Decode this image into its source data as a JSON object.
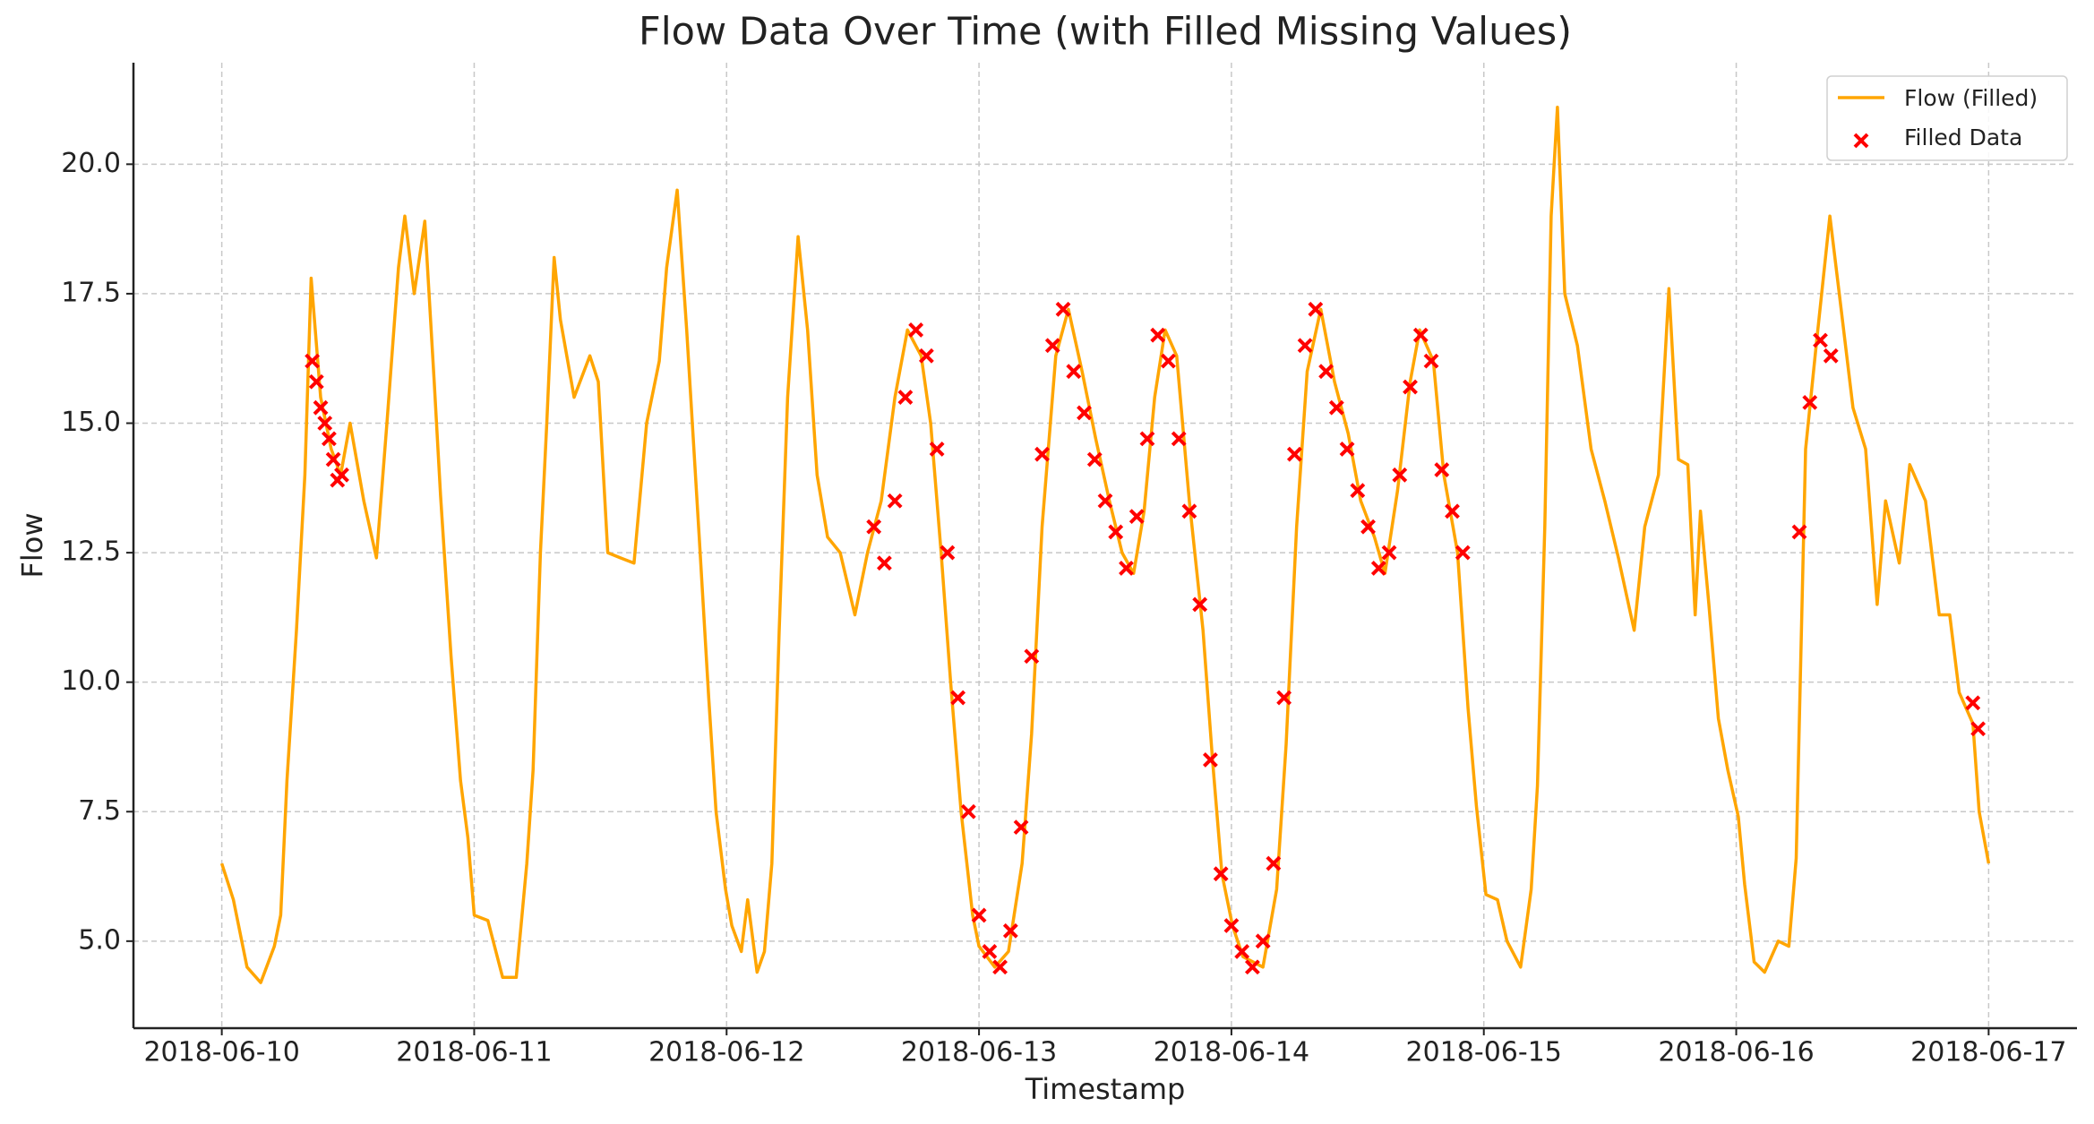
{
  "chart_data": {
    "type": "line",
    "title": "Flow Data Over Time (with Filled Missing Values)",
    "x_label": "Timestamp",
    "y_label": "Flow",
    "xlim": [
      -8.4,
      176.4
    ],
    "ylim": [
      3.32,
      21.96
    ],
    "xticks": [
      {
        "value": 0,
        "label": "2018-06-10"
      },
      {
        "value": 24,
        "label": "2018-06-11"
      },
      {
        "value": 48,
        "label": "2018-06-12"
      },
      {
        "value": 72,
        "label": "2018-06-13"
      },
      {
        "value": 96,
        "label": "2018-06-14"
      },
      {
        "value": 120,
        "label": "2018-06-15"
      },
      {
        "value": 144,
        "label": "2018-06-16"
      },
      {
        "value": 168,
        "label": "2018-06-17"
      }
    ],
    "yticks": [
      {
        "value": 5,
        "label": "5.0"
      },
      {
        "value": 7.5,
        "label": "7.5"
      },
      {
        "value": 10,
        "label": "10.0"
      },
      {
        "value": 12.5,
        "label": "12.5"
      },
      {
        "value": 15,
        "label": "15.0"
      },
      {
        "value": 17.5,
        "label": "17.5"
      },
      {
        "value": 20,
        "label": "20.0"
      }
    ],
    "grid": true,
    "legend": "upper right",
    "series": [
      {
        "name": "Flow (Filled)",
        "type": "line",
        "color": "#ffa500",
        "x": [
          0,
          1.1,
          2.4,
          3.7,
          5,
          5.6,
          6.2,
          7.1,
          7.9,
          8.5,
          9.4,
          10.4,
          11.3,
          12.2,
          13.5,
          14.7,
          15.7,
          16.8,
          17.4,
          18.3,
          19.3,
          20.2,
          20.8,
          21.8,
          22.7,
          23.4,
          24,
          25.3,
          26.7,
          28,
          29,
          29.6,
          30.3,
          30.9,
          31.6,
          32.2,
          33.5,
          35,
          35.8,
          36.7,
          37.9,
          39.2,
          40.4,
          41.6,
          42.3,
          43.3,
          44.2,
          44.8,
          45.4,
          46.3,
          47,
          47.9,
          48.5,
          49.4,
          50,
          50.9,
          51.6,
          52.3,
          53,
          53.8,
          54.8,
          55.7,
          56.6,
          57.6,
          58.8,
          60.2,
          61.4,
          62.7,
          64,
          65.2,
          66.5,
          67.4,
          68.4,
          69.3,
          70.3,
          71.4,
          72,
          73.5,
          74.8,
          76.1,
          77,
          78,
          79.3,
          80.5,
          81.8,
          83.1,
          84.4,
          85.6,
          86.7,
          87.7,
          88.7,
          89.7,
          90.8,
          92,
          93.3,
          94.2,
          95.1,
          96.1,
          97.1,
          99,
          100.3,
          101.2,
          102.2,
          103.2,
          104.5,
          105.8,
          107.1,
          108.3,
          109.6,
          110.6,
          111.8,
          113,
          113.9,
          115.2,
          116.2,
          117.5,
          118.5,
          119.3,
          120.2,
          121.3,
          122.2,
          123.5,
          124.5,
          125.1,
          125.8,
          126.4,
          127,
          127.7,
          128.9,
          130.2,
          131.5,
          132.8,
          134.3,
          135.3,
          136.6,
          137.6,
          138.5,
          139.4,
          140.1,
          140.6,
          141.4,
          142.3,
          143.2,
          144.2,
          144.8,
          145.7,
          146.7,
          148,
          149,
          149.7,
          150.6,
          151.6,
          152.9,
          153.8,
          155.1,
          156.3,
          157.4,
          158.2,
          159.5,
          160.5,
          162,
          163.3,
          164.3,
          165.2,
          166.5,
          167.1,
          168
        ],
        "values": [
          6.5,
          5.8,
          4.5,
          4.2,
          4.9,
          5.5,
          8.1,
          11,
          14,
          17.8,
          15.5,
          14.5,
          14,
          15,
          13.5,
          12.4,
          15,
          18,
          19,
          17.5,
          18.9,
          15.8,
          13.6,
          10.5,
          8.1,
          7,
          5.5,
          5.4,
          4.3,
          4.3,
          6.5,
          8.3,
          12.5,
          15,
          18.2,
          17,
          15.5,
          16.3,
          15.8,
          12.5,
          12.4,
          12.3,
          15,
          16.2,
          18,
          19.5,
          16.8,
          14.8,
          12.8,
          9.7,
          7.5,
          6,
          5.3,
          4.8,
          5.8,
          4.4,
          4.8,
          6.5,
          11,
          15.5,
          18.6,
          16.8,
          14,
          12.8,
          12.5,
          11.3,
          12.5,
          13.5,
          15.5,
          16.8,
          16.3,
          15,
          12.5,
          10,
          7.5,
          5.5,
          4.9,
          4.5,
          4.8,
          6.5,
          9,
          13,
          16.3,
          17.2,
          16,
          14.7,
          13.5,
          12.5,
          12.1,
          13.3,
          15.5,
          16.8,
          16.3,
          13.5,
          11,
          8.5,
          6.3,
          5.3,
          4.7,
          4.5,
          6,
          8.8,
          13,
          16,
          17.2,
          15.8,
          14.8,
          13.5,
          12.8,
          12.1,
          13.7,
          15.8,
          16.8,
          16.2,
          14,
          12.5,
          9.5,
          7.6,
          5.9,
          5.8,
          5,
          4.5,
          6,
          8,
          13,
          19,
          21.1,
          17.5,
          16.5,
          14.5,
          13.5,
          12.4,
          11,
          13,
          14,
          17.6,
          14.3,
          14.2,
          11.3,
          13.3,
          11.5,
          9.3,
          8.3,
          7.4,
          6.1,
          4.6,
          4.4,
          5,
          4.9,
          6.6,
          14.5,
          16.5,
          19,
          17.5,
          15.3,
          14.5,
          11.5,
          13.5,
          12.3,
          14.2,
          13.5,
          11.3,
          11.3,
          9.8,
          9.2,
          7.5,
          6.5
        ]
      },
      {
        "name": "Filled Data",
        "type": "scatter",
        "color": "#ff0000",
        "x": [
          8.6,
          9,
          9.4,
          9.8,
          10.2,
          10.6,
          11,
          11.4,
          62,
          63,
          64,
          65,
          66,
          67,
          68,
          69,
          70,
          71,
          72,
          73,
          74,
          75,
          76,
          77,
          78,
          79,
          80,
          81,
          82,
          83,
          84,
          85,
          86,
          87,
          88,
          89,
          90,
          91,
          92,
          93,
          94,
          95,
          96,
          97,
          98,
          99,
          100,
          101,
          102,
          103,
          104,
          105,
          106,
          107,
          108,
          109,
          110,
          111,
          112,
          113,
          114,
          115,
          116,
          117,
          118,
          150,
          151,
          152,
          153,
          166.5,
          167
        ],
        "values": [
          16.2,
          15.8,
          15.3,
          15,
          14.7,
          14.3,
          13.9,
          14,
          13,
          12.3,
          13.5,
          15.5,
          16.8,
          16.3,
          14.5,
          12.5,
          9.7,
          7.5,
          5.5,
          4.8,
          4.5,
          5.2,
          7.2,
          10.5,
          14.4,
          16.5,
          17.2,
          16,
          15.2,
          14.3,
          13.5,
          12.9,
          12.2,
          13.2,
          14.7,
          16.7,
          16.2,
          14.7,
          13.3,
          11.5,
          8.5,
          6.3,
          5.3,
          4.8,
          4.5,
          5,
          6.5,
          9.7,
          14.4,
          16.5,
          17.2,
          16,
          15.3,
          14.5,
          13.7,
          13,
          12.2,
          12.5,
          14,
          15.7,
          16.7,
          16.2,
          14.1,
          13.3,
          12.5,
          12.9,
          15.4,
          16.6,
          16.3,
          9.6,
          9.1
        ]
      }
    ]
  }
}
